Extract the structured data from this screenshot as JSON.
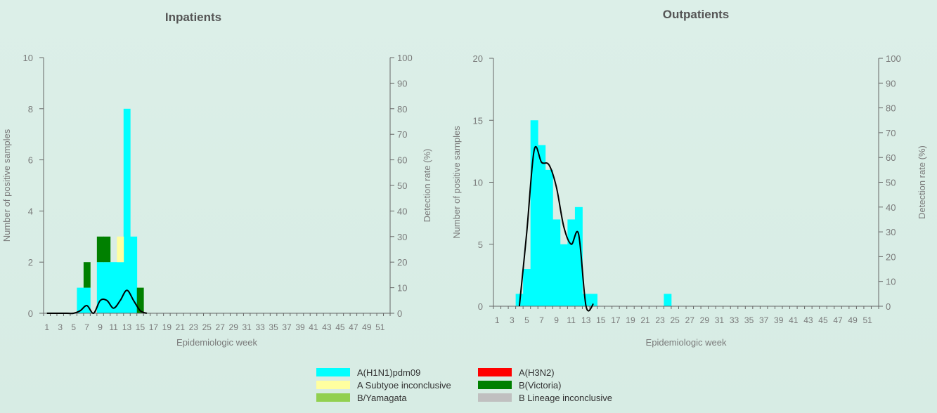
{
  "charts": [
    {
      "title": "Inpatients",
      "xlabel": "Epidemiologic week",
      "ylabel_left": "Number of positive samples",
      "ylabel_right": "Detection rate (%)",
      "y_left_ticks": [
        0,
        2,
        4,
        6,
        8,
        10
      ],
      "y_right_ticks": [
        0,
        10,
        20,
        30,
        40,
        50,
        60,
        70,
        80,
        90,
        100
      ]
    },
    {
      "title": "Outpatients",
      "xlabel": "Epidemiologic week",
      "ylabel_left": "Number of positive samples",
      "ylabel_right": "Detection rate (%)",
      "y_left_ticks": [
        0,
        5,
        10,
        15,
        20
      ],
      "y_right_ticks": [
        0,
        10,
        20,
        30,
        40,
        50,
        60,
        70,
        80,
        90,
        100
      ]
    }
  ],
  "legend": [
    {
      "key": "h1n1",
      "label": "A(H1N1)pdm09",
      "color": "#00ffff"
    },
    {
      "key": "h3n2",
      "label": "A(H3N2)",
      "color": "#ff0000"
    },
    {
      "key": "asub",
      "label": "A Subtyoe inconclusive",
      "color": "#ffffa0"
    },
    {
      "key": "bvic",
      "label": "B(Victoria)",
      "color": "#008000"
    },
    {
      "key": "byam",
      "label": "B/Yamagata",
      "color": "#92d050"
    },
    {
      "key": "blin",
      "label": "B Lineage inconclusive",
      "color": "#c0c0c0"
    }
  ],
  "chart_data": [
    {
      "type": "bar",
      "stacked": true,
      "title": "Inpatients",
      "xlabel": "Epidemiologic week",
      "ylabel": "Number of positive samples",
      "y2label": "Detection rate (%)",
      "x_tick_labels": [
        "1",
        "3",
        "5",
        "7",
        "9",
        "11",
        "13",
        "15",
        "17",
        "19",
        "21",
        "23",
        "25",
        "27",
        "29",
        "31",
        "33",
        "35",
        "37",
        "39",
        "41",
        "43",
        "45",
        "47",
        "49",
        "51"
      ],
      "ylim": [
        0,
        10
      ],
      "y2lim": [
        0,
        100
      ],
      "grid": false,
      "series": [
        {
          "name": "A(H1N1)pdm09",
          "data": [
            [
              6,
              1
            ],
            [
              7,
              1
            ],
            [
              9,
              2
            ],
            [
              10,
              2
            ],
            [
              11,
              2
            ],
            [
              12,
              2
            ],
            [
              13,
              8
            ],
            [
              14,
              3
            ]
          ]
        },
        {
          "name": "A Subtyoe inconclusive",
          "data": [
            [
              12,
              1
            ]
          ]
        },
        {
          "name": "B(Victoria)",
          "data": [
            [
              7,
              1
            ],
            [
              9,
              1
            ],
            [
              10,
              1
            ],
            [
              15,
              1
            ]
          ]
        }
      ],
      "line": {
        "name": "Detection rate (%)",
        "x": [
          1,
          2,
          3,
          4,
          5,
          6,
          7,
          8,
          9,
          10,
          11,
          12,
          13,
          14,
          15,
          16
        ],
        "y": [
          0,
          0,
          0,
          0,
          0,
          1,
          3,
          0,
          5,
          5,
          2,
          5,
          9,
          5,
          1,
          0
        ]
      }
    },
    {
      "type": "bar",
      "stacked": true,
      "title": "Outpatients",
      "xlabel": "Epidemiologic week",
      "ylabel": "Number of positive samples",
      "y2label": "Detection rate (%)",
      "x_tick_labels": [
        "1",
        "3",
        "5",
        "7",
        "9",
        "11",
        "13",
        "15",
        "17",
        "19",
        "21",
        "23",
        "25",
        "27",
        "29",
        "31",
        "33",
        "35",
        "37",
        "39",
        "41",
        "43",
        "45",
        "47",
        "49",
        "51"
      ],
      "ylim": [
        0,
        20
      ],
      "y2lim": [
        0,
        100
      ],
      "grid": false,
      "series": [
        {
          "name": "A(H1N1)pdm09",
          "data": [
            [
              4,
              1
            ],
            [
              5,
              3
            ],
            [
              6,
              15
            ],
            [
              7,
              13
            ],
            [
              8,
              11
            ],
            [
              9,
              7
            ],
            [
              10,
              5
            ],
            [
              11,
              7
            ],
            [
              12,
              8
            ],
            [
              13,
              1
            ],
            [
              14,
              1
            ],
            [
              24,
              1
            ]
          ]
        }
      ],
      "line": {
        "name": "Detection rate (%)",
        "x": [
          4,
          5,
          6,
          7,
          8,
          9,
          10,
          11,
          12,
          13,
          14
        ],
        "y": [
          0,
          30,
          63,
          58,
          57,
          48,
          32,
          25,
          29,
          0,
          1
        ]
      }
    }
  ]
}
